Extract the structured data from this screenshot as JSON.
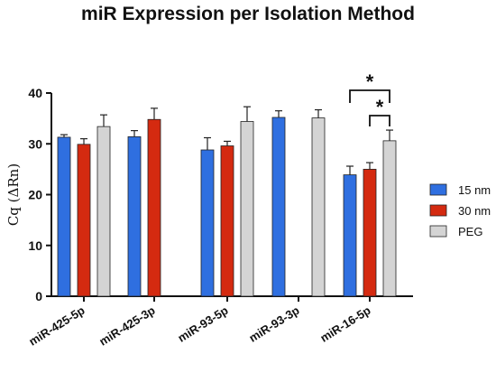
{
  "chart_data": {
    "type": "bar",
    "title": "miR Expression per Isolation Method",
    "ylabel": "Cq (ΔRn)",
    "xlabel": "",
    "ylim": [
      0,
      40
    ],
    "yticks": [
      0,
      10,
      20,
      30,
      40
    ],
    "categories": [
      "miR-425-5p",
      "miR-425-3p",
      "miR-93-5p",
      "miR-93-3p",
      "miR-16-5p"
    ],
    "series": [
      {
        "name": "15 nm",
        "color": "#2f6fe0",
        "values": [
          31.3,
          31.4,
          28.8,
          35.2,
          23.9
        ],
        "errors": [
          0.5,
          1.2,
          2.4,
          1.3,
          1.7
        ]
      },
      {
        "name": "30 nm",
        "color": "#d42a10",
        "values": [
          29.9,
          34.8,
          29.6,
          null,
          25.0
        ],
        "errors": [
          1.1,
          2.2,
          0.9,
          null,
          1.3
        ]
      },
      {
        "name": "PEG",
        "color": "#d4d4d4",
        "values": [
          33.4,
          null,
          34.4,
          35.1,
          30.6
        ],
        "errors": [
          2.3,
          null,
          2.9,
          1.6,
          2.1
        ]
      }
    ],
    "significance": [
      {
        "category": "miR-16-5p",
        "between": [
          "15 nm",
          "PEG"
        ],
        "label": "*"
      },
      {
        "category": "miR-16-5p",
        "between": [
          "30 nm",
          "PEG"
        ],
        "label": "*"
      }
    ],
    "legend_position": "right",
    "grid": false
  }
}
